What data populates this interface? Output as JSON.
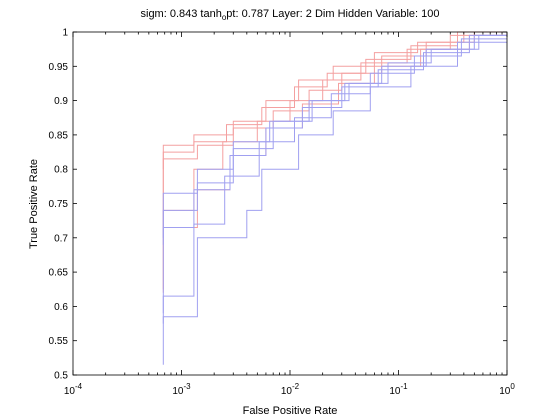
{
  "chart_data": {
    "type": "line",
    "title_parts": {
      "pre": "sigm: 0.843  tanh",
      "sub": "o",
      "post": "pt: 0.787 Layer: 2  Dim Hidden Variable: 100"
    },
    "xlabel": "False Positive Rate",
    "ylabel": "True Positive Rate",
    "xscale": "log",
    "xlim": [
      0.0001,
      1
    ],
    "ylim": [
      0.5,
      1
    ],
    "x_ticks": [
      {
        "value": 0.0001,
        "base": "10",
        "exp": "-4"
      },
      {
        "value": 0.001,
        "base": "10",
        "exp": "-3"
      },
      {
        "value": 0.01,
        "base": "10",
        "exp": "-2"
      },
      {
        "value": 0.1,
        "base": "10",
        "exp": "-1"
      },
      {
        "value": 1,
        "base": "10",
        "exp": "0"
      }
    ],
    "y_ticks": [
      {
        "value": 0.5,
        "label": "0.5"
      },
      {
        "value": 0.55,
        "label": "0.55"
      },
      {
        "value": 0.6,
        "label": "0.6"
      },
      {
        "value": 0.65,
        "label": "0.65"
      },
      {
        "value": 0.7,
        "label": "0.7"
      },
      {
        "value": 0.75,
        "label": "0.75"
      },
      {
        "value": 0.8,
        "label": "0.8"
      },
      {
        "value": 0.85,
        "label": "0.85"
      },
      {
        "value": 0.9,
        "label": "0.9"
      },
      {
        "value": 0.95,
        "label": "0.95"
      },
      {
        "value": 1,
        "label": "1"
      }
    ],
    "grid": false,
    "colors": {
      "sigm": "#f4a0a0",
      "tanh": "#a0a0f0",
      "axes": "#000000"
    },
    "series": [
      {
        "group": "sigm",
        "points": [
          [
            0.00068,
            0.62
          ],
          [
            0.00068,
            0.835
          ],
          [
            0.0013,
            0.835
          ],
          [
            0.0013,
            0.85
          ],
          [
            0.003,
            0.85
          ],
          [
            0.003,
            0.87
          ],
          [
            0.006,
            0.87
          ],
          [
            0.006,
            0.9
          ],
          [
            0.012,
            0.9
          ],
          [
            0.012,
            0.93
          ],
          [
            0.025,
            0.93
          ],
          [
            0.025,
            0.95
          ],
          [
            0.06,
            0.95
          ],
          [
            0.06,
            0.97
          ],
          [
            0.15,
            0.97
          ],
          [
            0.15,
            0.985
          ],
          [
            0.4,
            0.985
          ],
          [
            0.4,
            1
          ],
          [
            1,
            1
          ]
        ]
      },
      {
        "group": "sigm",
        "points": [
          [
            0.00068,
            0.625
          ],
          [
            0.00068,
            0.825
          ],
          [
            0.0013,
            0.825
          ],
          [
            0.0013,
            0.84
          ],
          [
            0.0026,
            0.84
          ],
          [
            0.0026,
            0.865
          ],
          [
            0.0055,
            0.865
          ],
          [
            0.0055,
            0.89
          ],
          [
            0.011,
            0.89
          ],
          [
            0.011,
            0.92
          ],
          [
            0.022,
            0.92
          ],
          [
            0.022,
            0.94
          ],
          [
            0.05,
            0.94
          ],
          [
            0.05,
            0.96
          ],
          [
            0.13,
            0.96
          ],
          [
            0.13,
            0.98
          ],
          [
            0.35,
            0.98
          ],
          [
            0.35,
            1
          ],
          [
            1,
            1
          ]
        ]
      },
      {
        "group": "sigm",
        "points": [
          [
            0.00068,
            0.8
          ],
          [
            0.00068,
            0.815
          ],
          [
            0.0014,
            0.815
          ],
          [
            0.0014,
            0.835
          ],
          [
            0.003,
            0.835
          ],
          [
            0.003,
            0.86
          ],
          [
            0.007,
            0.86
          ],
          [
            0.007,
            0.885
          ],
          [
            0.015,
            0.885
          ],
          [
            0.015,
            0.915
          ],
          [
            0.03,
            0.915
          ],
          [
            0.03,
            0.94
          ],
          [
            0.07,
            0.94
          ],
          [
            0.07,
            0.965
          ],
          [
            0.18,
            0.965
          ],
          [
            0.18,
            0.985
          ],
          [
            0.5,
            0.985
          ],
          [
            0.5,
            1
          ],
          [
            1,
            1
          ]
        ]
      },
      {
        "group": "sigm",
        "points": [
          [
            0.00068,
            0.7
          ],
          [
            0.00068,
            0.74
          ],
          [
            0.0013,
            0.74
          ],
          [
            0.0013,
            0.8
          ],
          [
            0.0024,
            0.8
          ],
          [
            0.0024,
            0.84
          ],
          [
            0.005,
            0.84
          ],
          [
            0.005,
            0.87
          ],
          [
            0.01,
            0.87
          ],
          [
            0.01,
            0.9
          ],
          [
            0.02,
            0.9
          ],
          [
            0.02,
            0.93
          ],
          [
            0.045,
            0.93
          ],
          [
            0.045,
            0.955
          ],
          [
            0.12,
            0.955
          ],
          [
            0.12,
            0.975
          ],
          [
            0.3,
            0.975
          ],
          [
            0.3,
            0.995
          ],
          [
            1,
            0.995
          ]
        ]
      },
      {
        "group": "sigm",
        "points": [
          [
            0.00068,
            0.7
          ],
          [
            0.00068,
            0.715
          ],
          [
            0.0014,
            0.715
          ],
          [
            0.0014,
            0.77
          ],
          [
            0.0028,
            0.77
          ],
          [
            0.0028,
            0.82
          ],
          [
            0.006,
            0.82
          ],
          [
            0.006,
            0.86
          ],
          [
            0.013,
            0.86
          ],
          [
            0.013,
            0.895
          ],
          [
            0.028,
            0.895
          ],
          [
            0.028,
            0.925
          ],
          [
            0.06,
            0.925
          ],
          [
            0.06,
            0.95
          ],
          [
            0.16,
            0.95
          ],
          [
            0.16,
            0.975
          ],
          [
            0.45,
            0.975
          ],
          [
            0.45,
            0.995
          ],
          [
            1,
            0.995
          ]
        ]
      },
      {
        "group": "tanh",
        "points": [
          [
            0.00068,
            0.515
          ],
          [
            0.00068,
            0.765
          ],
          [
            0.0014,
            0.765
          ],
          [
            0.0014,
            0.78
          ],
          [
            0.003,
            0.78
          ],
          [
            0.003,
            0.83
          ],
          [
            0.007,
            0.83
          ],
          [
            0.007,
            0.87
          ],
          [
            0.016,
            0.87
          ],
          [
            0.016,
            0.9
          ],
          [
            0.035,
            0.9
          ],
          [
            0.035,
            0.925
          ],
          [
            0.08,
            0.925
          ],
          [
            0.08,
            0.955
          ],
          [
            0.2,
            0.955
          ],
          [
            0.2,
            0.975
          ],
          [
            0.55,
            0.975
          ],
          [
            0.55,
            0.995
          ],
          [
            1,
            0.995
          ]
        ]
      },
      {
        "group": "tanh",
        "points": [
          [
            0.00068,
            0.69
          ],
          [
            0.00068,
            0.74
          ],
          [
            0.0014,
            0.74
          ],
          [
            0.0014,
            0.8
          ],
          [
            0.003,
            0.8
          ],
          [
            0.003,
            0.84
          ],
          [
            0.0065,
            0.84
          ],
          [
            0.0065,
            0.87
          ],
          [
            0.015,
            0.87
          ],
          [
            0.015,
            0.9
          ],
          [
            0.032,
            0.9
          ],
          [
            0.032,
            0.925
          ],
          [
            0.07,
            0.925
          ],
          [
            0.07,
            0.95
          ],
          [
            0.18,
            0.95
          ],
          [
            0.18,
            0.975
          ],
          [
            0.5,
            0.975
          ],
          [
            0.5,
            0.995
          ],
          [
            1,
            0.995
          ]
        ]
      },
      {
        "group": "tanh",
        "points": [
          [
            0.00068,
            0.7
          ],
          [
            0.00068,
            0.715
          ],
          [
            0.0013,
            0.715
          ],
          [
            0.0013,
            0.77
          ],
          [
            0.0028,
            0.77
          ],
          [
            0.0028,
            0.82
          ],
          [
            0.006,
            0.82
          ],
          [
            0.006,
            0.86
          ],
          [
            0.013,
            0.86
          ],
          [
            0.013,
            0.89
          ],
          [
            0.03,
            0.89
          ],
          [
            0.03,
            0.92
          ],
          [
            0.065,
            0.92
          ],
          [
            0.065,
            0.945
          ],
          [
            0.17,
            0.945
          ],
          [
            0.17,
            0.97
          ],
          [
            0.45,
            0.97
          ],
          [
            0.45,
            0.995
          ],
          [
            1,
            0.995
          ]
        ]
      },
      {
        "group": "tanh",
        "points": [
          [
            0.00068,
            0.59
          ],
          [
            0.00068,
            0.615
          ],
          [
            0.0013,
            0.615
          ],
          [
            0.0013,
            0.72
          ],
          [
            0.0025,
            0.72
          ],
          [
            0.0025,
            0.79
          ],
          [
            0.0052,
            0.79
          ],
          [
            0.0052,
            0.84
          ],
          [
            0.011,
            0.84
          ],
          [
            0.011,
            0.875
          ],
          [
            0.024,
            0.875
          ],
          [
            0.024,
            0.91
          ],
          [
            0.055,
            0.91
          ],
          [
            0.055,
            0.94
          ],
          [
            0.14,
            0.94
          ],
          [
            0.14,
            0.965
          ],
          [
            0.38,
            0.965
          ],
          [
            0.38,
            0.99
          ],
          [
            1,
            0.99
          ]
        ]
      },
      {
        "group": "tanh",
        "points": [
          [
            0.00068,
            0.575
          ],
          [
            0.00068,
            0.585
          ],
          [
            0.0014,
            0.585
          ],
          [
            0.0014,
            0.7
          ],
          [
            0.004,
            0.7
          ],
          [
            0.004,
            0.74
          ],
          [
            0.0055,
            0.74
          ],
          [
            0.0055,
            0.8
          ],
          [
            0.012,
            0.8
          ],
          [
            0.012,
            0.85
          ],
          [
            0.025,
            0.85
          ],
          [
            0.025,
            0.885
          ],
          [
            0.055,
            0.885
          ],
          [
            0.055,
            0.92
          ],
          [
            0.13,
            0.92
          ],
          [
            0.13,
            0.95
          ],
          [
            0.35,
            0.95
          ],
          [
            0.35,
            0.985
          ],
          [
            1,
            0.985
          ]
        ]
      }
    ]
  }
}
